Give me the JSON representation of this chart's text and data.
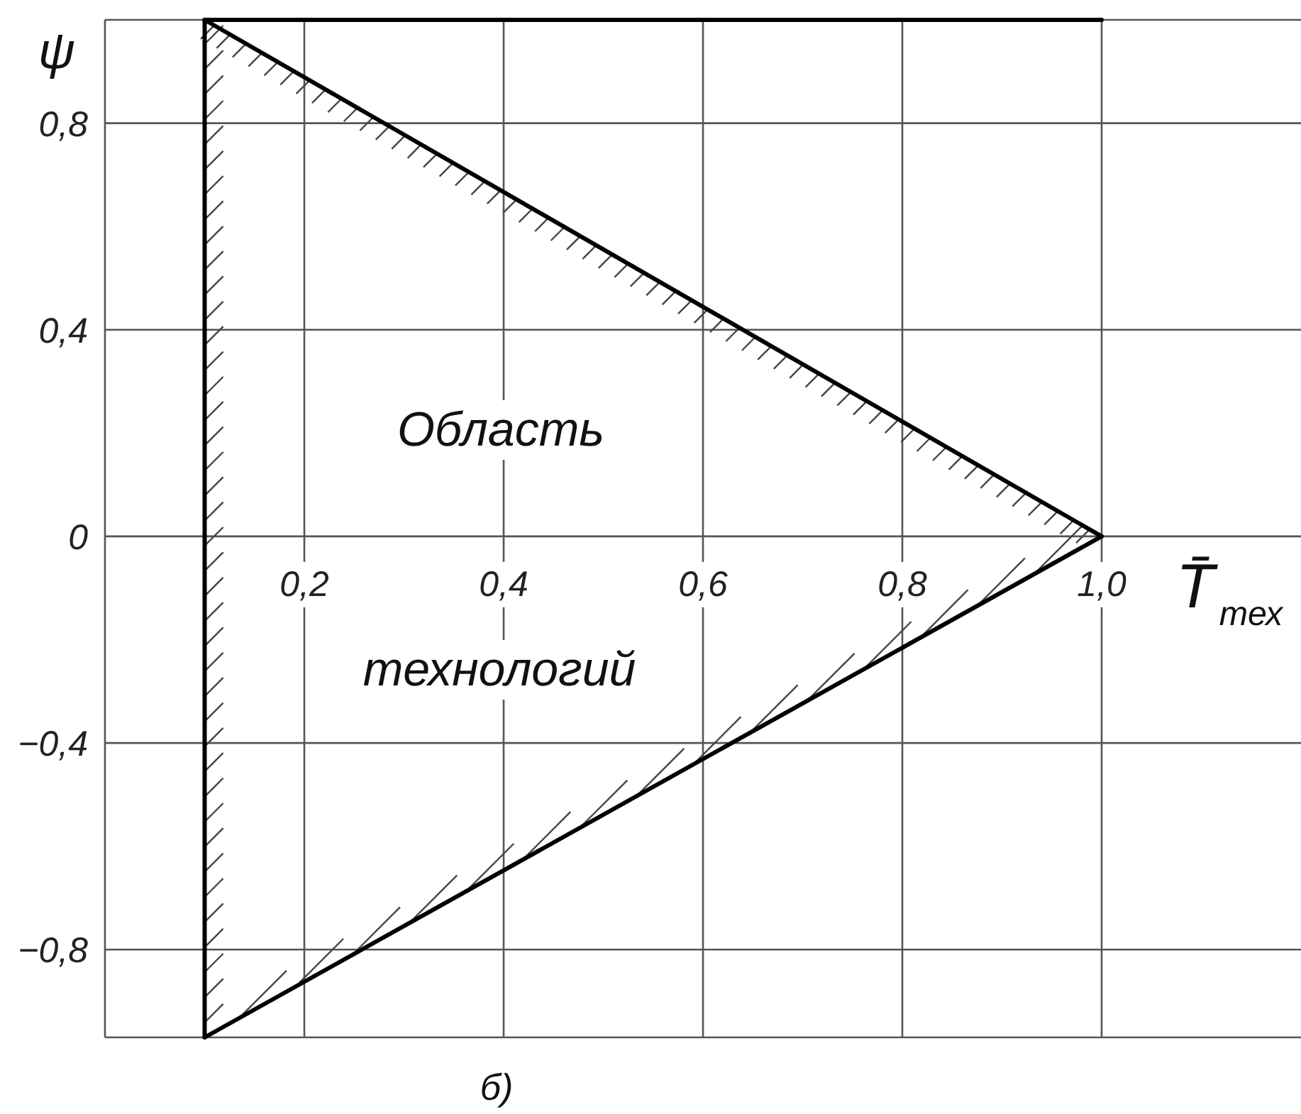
{
  "chart_data": {
    "type": "line",
    "xlabel": "T̄$_{тех}$",
    "ylabel": "ψ",
    "annotations": [
      "Область",
      "технологий",
      "б)"
    ],
    "xlim": [
      0,
      1.2
    ],
    "ylim": [
      -0.97,
      1
    ],
    "xticks": [
      {
        "value": 0.2,
        "label": "0,2"
      },
      {
        "value": 0.4,
        "label": "0,4"
      },
      {
        "value": 0.6,
        "label": "0,6"
      },
      {
        "value": 0.8,
        "label": "0,8"
      },
      {
        "value": 1.0,
        "label": "1,0"
      }
    ],
    "yticks": [
      {
        "value": -0.8,
        "label": "−0,8"
      },
      {
        "value": -0.4,
        "label": "−0,4"
      },
      0,
      {
        "value": 0.4,
        "label": "0,4"
      },
      {
        "value": 0.8,
        "label": "0,8"
      }
    ],
    "grid": true,
    "line_style": "solid",
    "x": [
      0.1,
      1.0
    ],
    "series": [
      {
        "color": "#000000",
        "values": [
          1,
          0
        ]
      },
      {
        "color": "#000000",
        "values": [
          -0.97,
          0
        ]
      },
      {
        "color": "#000000",
        "values": [
          1,
          1
        ]
      }
    ],
    "ref_lines": [
      {
        "axis": "x",
        "value": 0.1,
        "color": "#000000"
      }
    ]
  }
}
